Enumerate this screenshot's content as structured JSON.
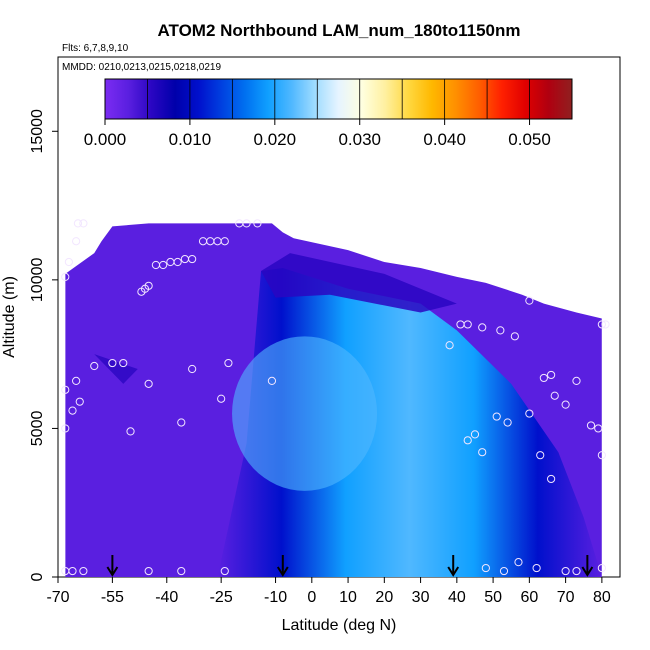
{
  "chart_data": {
    "type": "heatmap",
    "title": "ATOM2 Northbound LAM_num_180to1150nm",
    "annotations": [
      "Flts: 6,7,8,9,10",
      "MMDD: 0210,0213,0215,0218,0219"
    ],
    "xlabel": "Latitude (deg N)",
    "ylabel": "Altitude (m)",
    "xlim": [
      -70,
      85
    ],
    "ylim": [
      0,
      17500
    ],
    "x_ticks": [
      -70,
      -55,
      -40,
      -25,
      -10,
      0,
      10,
      20,
      30,
      40,
      50,
      60,
      70,
      80
    ],
    "y_ticks": [
      0,
      5000,
      10000,
      15000
    ],
    "grid": false,
    "colorbar": {
      "placement": "top",
      "min": 0.0,
      "max": 0.055,
      "tick_values": [
        0.0,
        0.01,
        0.02,
        0.03,
        0.04,
        0.05
      ],
      "tick_labels": [
        "0.000",
        "0.010",
        "0.020",
        "0.030",
        "0.040",
        "0.050"
      ],
      "colors": [
        "#7b2cf2",
        "#5a1fe0",
        "#2a06c2",
        "#0000aa",
        "#0010cc",
        "#0040e0",
        "#0070f0",
        "#10a0ff",
        "#50b8ff",
        "#a0dcff",
        "#e6f4ff",
        "#ffffe0",
        "#fff0a0",
        "#ffd840",
        "#ffb800",
        "#ff9000",
        "#ff6000",
        "#ff2000",
        "#e00000",
        "#b00010",
        "#902020"
      ]
    },
    "data_extent": {
      "lat_range": [
        -68,
        80
      ],
      "top_boundary": [
        [
          -68,
          10200
        ],
        [
          -60,
          10900
        ],
        [
          -58,
          11300
        ],
        [
          -55,
          11800
        ],
        [
          -45,
          11900
        ],
        [
          -11,
          11900
        ],
        [
          -8,
          11600
        ],
        [
          -5,
          11400
        ],
        [
          10,
          11000
        ],
        [
          20,
          10600
        ],
        [
          30,
          10400
        ],
        [
          40,
          10100
        ],
        [
          48,
          9900
        ],
        [
          58,
          9500
        ],
        [
          64,
          9200
        ],
        [
          73,
          8900
        ],
        [
          80,
          8700
        ]
      ]
    },
    "plume_stops": [
      0.003,
      0.01,
      0.019,
      0.021,
      0.019,
      0.01,
      0.003
    ],
    "flight_points": [
      [
        -68.0,
        10100
      ],
      [
        -67,
        10600
      ],
      [
        -65,
        11300
      ],
      [
        -64.5,
        11900
      ],
      [
        -63,
        11900
      ],
      [
        -68,
        6300
      ],
      [
        -66,
        5600
      ],
      [
        -65,
        6600
      ],
      [
        -64,
        5900
      ],
      [
        -60,
        7100
      ],
      [
        -55,
        7200
      ],
      [
        -52,
        7200
      ],
      [
        -68,
        5000
      ],
      [
        -50,
        4900
      ],
      [
        -45,
        6500
      ],
      [
        -47,
        9600
      ],
      [
        -46,
        9700
      ],
      [
        -45,
        9800
      ],
      [
        -43,
        10500
      ],
      [
        -41,
        10500
      ],
      [
        -39,
        10600
      ],
      [
        -37,
        10600
      ],
      [
        -35,
        10700
      ],
      [
        -33,
        10700
      ],
      [
        -30,
        11300
      ],
      [
        -28,
        11300
      ],
      [
        -26,
        11300
      ],
      [
        -24,
        11300
      ],
      [
        -20,
        11900
      ],
      [
        -18,
        11900
      ],
      [
        -33,
        7000
      ],
      [
        -36,
        5200
      ],
      [
        -25,
        6000
      ],
      [
        -23,
        7200
      ],
      [
        -11,
        6600
      ],
      [
        -15,
        11900
      ],
      [
        -68,
        200
      ],
      [
        -66,
        200
      ],
      [
        -63,
        200
      ],
      [
        -45,
        200
      ],
      [
        -36,
        200
      ],
      [
        -24,
        200
      ],
      [
        38,
        7800
      ],
      [
        41,
        8500
      ],
      [
        43,
        8500
      ],
      [
        47,
        8400
      ],
      [
        52,
        8300
      ],
      [
        56,
        8100
      ],
      [
        60,
        9300
      ],
      [
        43,
        4600
      ],
      [
        45,
        4800
      ],
      [
        47,
        4200
      ],
      [
        51,
        5400
      ],
      [
        54,
        5200
      ],
      [
        60,
        5500
      ],
      [
        63,
        4100
      ],
      [
        66,
        3300
      ],
      [
        64,
        6700
      ],
      [
        66,
        6800
      ],
      [
        67,
        6100
      ],
      [
        70,
        5800
      ],
      [
        73,
        6600
      ],
      [
        77,
        5100
      ],
      [
        79,
        5000
      ],
      [
        80,
        4100
      ],
      [
        80,
        8500
      ],
      [
        81,
        8500
      ],
      [
        48,
        300
      ],
      [
        53,
        200
      ],
      [
        57,
        500
      ],
      [
        62,
        300
      ],
      [
        70,
        200
      ],
      [
        73,
        200
      ],
      [
        80,
        300
      ]
    ],
    "arrows_at_lat": [
      -55,
      -8,
      39,
      76
    ]
  }
}
